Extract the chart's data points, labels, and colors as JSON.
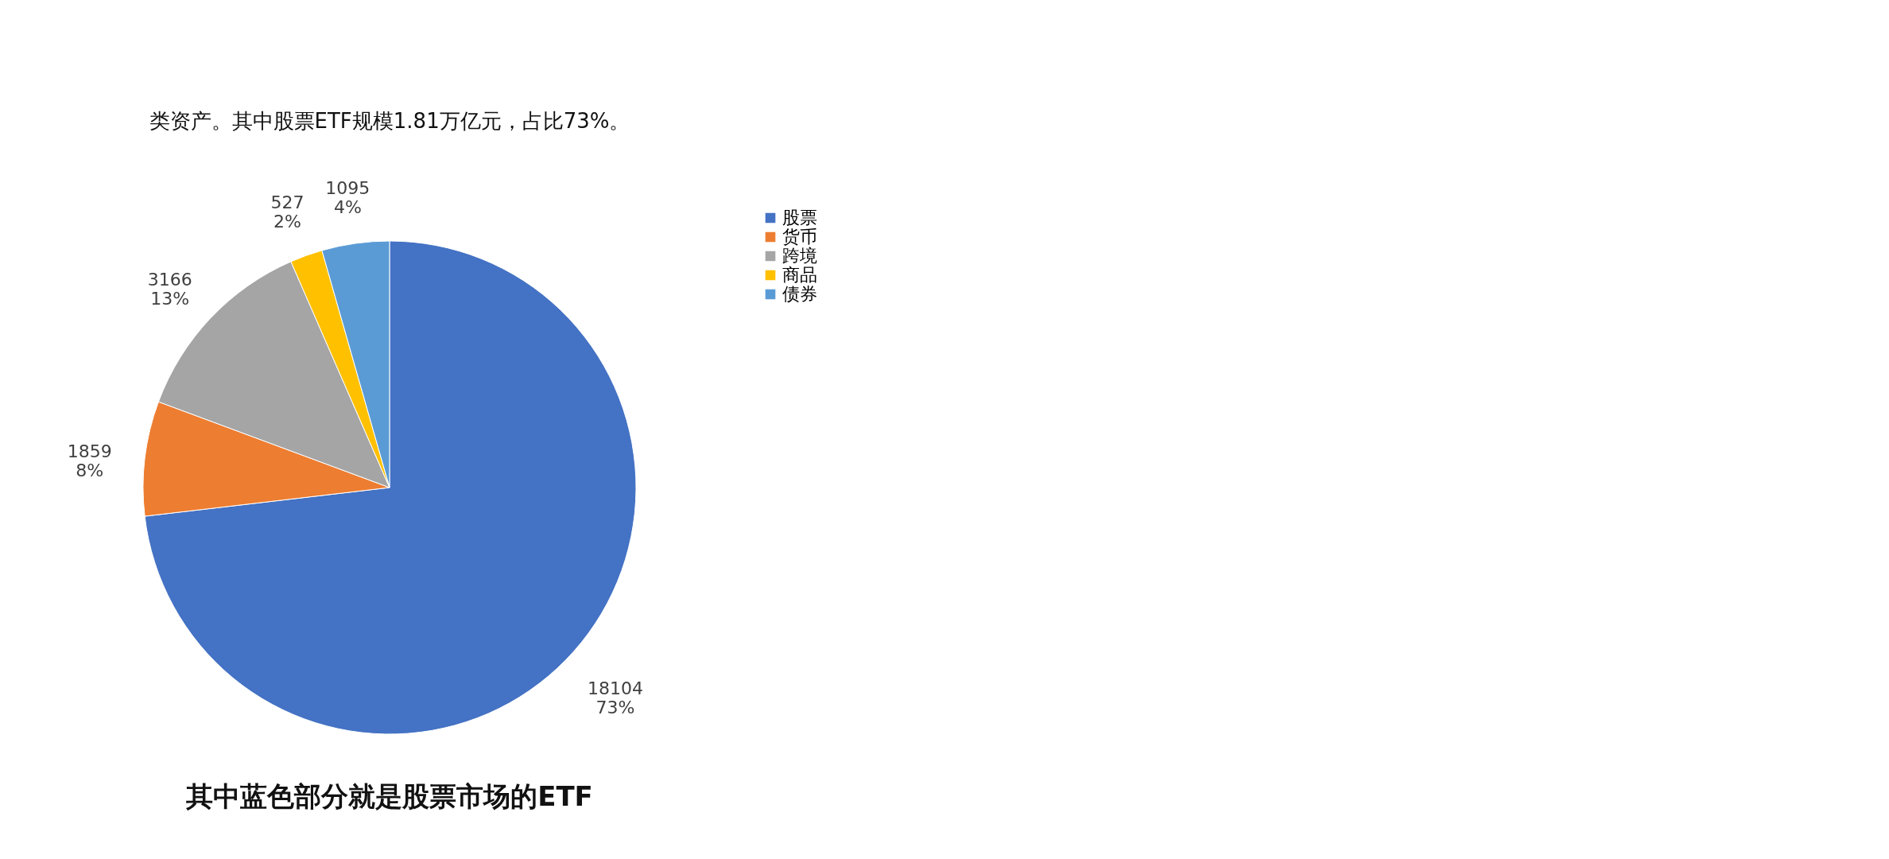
{
  "chart_data": {
    "type": "pie",
    "categories": [
      "股票",
      "货币",
      "跨境",
      "商品",
      "债券"
    ],
    "values": [
      18104,
      1859,
      3166,
      527,
      1095
    ],
    "colors": [
      "#4472c4",
      "#ed7d31",
      "#a5a5a5",
      "#ffc000",
      "#5b9bd5"
    ],
    "value_labels": [
      "18104\n73%",
      "1859\n8%",
      "3166\n13%",
      "527\n2%",
      "1095\n4%"
    ],
    "legend": "right",
    "annotations": [
      "类资产。其中股票ETF规模1.81万亿元，占比73%。",
      "其中蓝色部分就是股票市场的ETF"
    ]
  }
}
